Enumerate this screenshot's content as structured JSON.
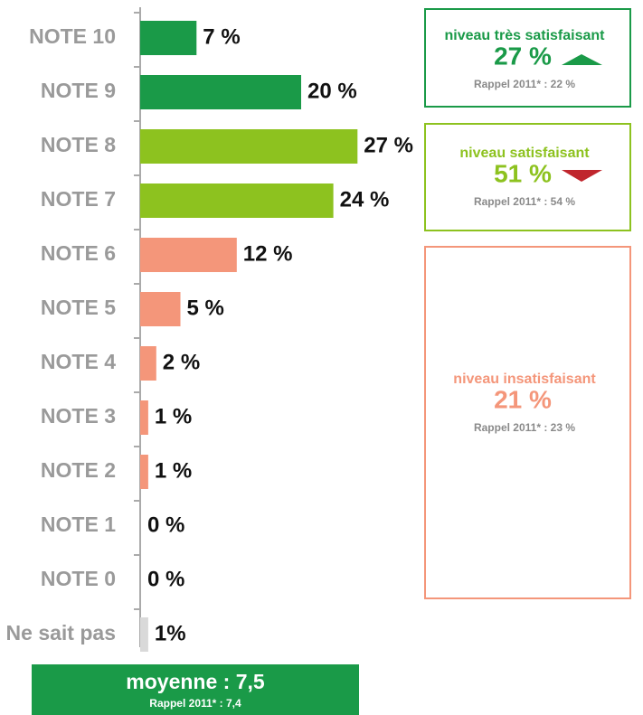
{
  "chart_data": {
    "type": "bar",
    "orientation": "horizontal",
    "categories": [
      "NOTE 10",
      "NOTE 9",
      "NOTE 8",
      "NOTE 7",
      "NOTE 6",
      "NOTE 5",
      "NOTE 4",
      "NOTE 3",
      "NOTE 2",
      "NOTE 1",
      "NOTE 0",
      "Ne sait pas"
    ],
    "values": [
      7,
      20,
      27,
      24,
      12,
      5,
      2,
      1,
      1,
      0,
      0,
      1
    ],
    "value_labels": [
      "7 %",
      "20 %",
      "27 %",
      "24 %",
      "12 %",
      "5 %",
      "2 %",
      "1 %",
      "1 %",
      "0 %",
      "0 %",
      "1%"
    ],
    "colors": [
      "#1a9a48",
      "#1a9a48",
      "#8dc21f",
      "#8dc21f",
      "#f4967a",
      "#f4967a",
      "#f4967a",
      "#f4967a",
      "#f4967a",
      "#f4967a",
      "#f4967a",
      "#d9d9d9"
    ],
    "groups": [
      {
        "label": "niveau très satisfaisant",
        "value": 27,
        "value_label": "27 %",
        "recall": "Rappel 2011* : 22 %",
        "color": "#1a9a48",
        "trend": "up"
      },
      {
        "label": "niveau satisfaisant",
        "value": 51,
        "value_label": "51 %",
        "recall": "Rappel 2011* : 54 %",
        "color": "#8dc21f",
        "trend": "down"
      },
      {
        "label": "niveau insatisfaisant",
        "value": 21,
        "value_label": "21 %",
        "recall": "Rappel 2011* : 23 %",
        "color": "#f4967a"
      }
    ],
    "summary": {
      "label": "moyenne : 7,5",
      "recall": "Rappel 2011* : 7,4",
      "color": "#1a9a48"
    }
  }
}
